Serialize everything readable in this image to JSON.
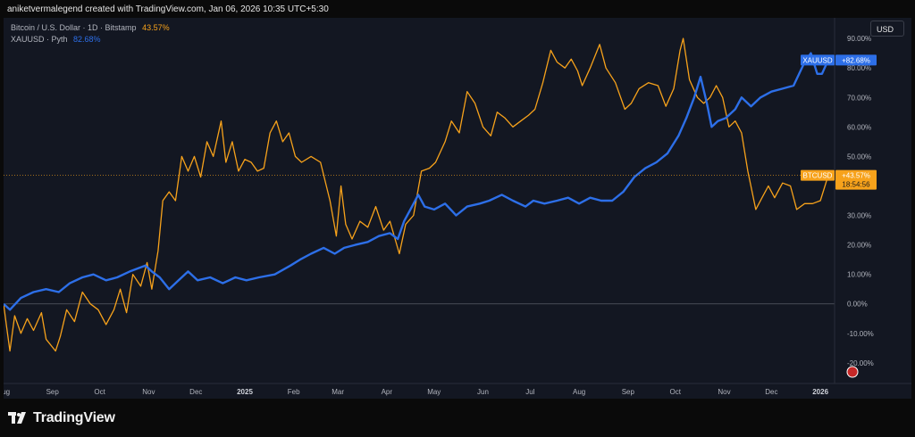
{
  "header": {
    "caption": "aniketvermalegend created with TradingView.com, Jan 06, 2026 10:35 UTC+5:30"
  },
  "legend": {
    "btc_title": "Bitcoin / U.S. Dollar · 1D · Bitstamp",
    "btc_value": "43.57%",
    "xau_title": "XAUUSD · Pyth",
    "xau_value": "82.68%"
  },
  "currency_button": "USD",
  "footer": {
    "logo_text": "TradingView"
  },
  "colors": {
    "background": "#131722",
    "btc": "#f7a21b",
    "xau": "#2d6fe8",
    "grid": "#1f2330",
    "text": "#b2b5be"
  },
  "chart_data": {
    "type": "line",
    "y_unit": "%",
    "ylim": [
      -27,
      97
    ],
    "y_ticks": [
      "90.00%",
      "80.00%",
      "70.00%",
      "60.00%",
      "50.00%",
      "40.00%",
      "30.00%",
      "20.00%",
      "10.00%",
      "0.00%",
      "-10.00%",
      "-20.00%"
    ],
    "y_tick_values": [
      90,
      80,
      70,
      60,
      50,
      40,
      30,
      20,
      10,
      0,
      -10,
      -20
    ],
    "x_range": [
      "2024-08-01",
      "2026-01-10"
    ],
    "x_ticks": [
      {
        "label": "Aug",
        "date": "2024-08-01"
      },
      {
        "label": "Sep",
        "date": "2024-09-01"
      },
      {
        "label": "Oct",
        "date": "2024-10-01"
      },
      {
        "label": "Nov",
        "date": "2024-11-01"
      },
      {
        "label": "Dec",
        "date": "2024-12-01"
      },
      {
        "label": "2025",
        "date": "2025-01-01"
      },
      {
        "label": "Feb",
        "date": "2025-02-01"
      },
      {
        "label": "Mar",
        "date": "2025-03-01"
      },
      {
        "label": "Apr",
        "date": "2025-04-01"
      },
      {
        "label": "May",
        "date": "2025-05-01"
      },
      {
        "label": "Jun",
        "date": "2025-06-01"
      },
      {
        "label": "Jul",
        "date": "2025-07-01"
      },
      {
        "label": "Aug",
        "date": "2025-08-01"
      },
      {
        "label": "Sep",
        "date": "2025-09-01"
      },
      {
        "label": "Oct",
        "date": "2025-10-01"
      },
      {
        "label": "Nov",
        "date": "2025-11-01"
      },
      {
        "label": "Dec",
        "date": "2025-12-01"
      },
      {
        "label": "2026",
        "date": "2026-01-01"
      }
    ],
    "grid": false,
    "zero_line": true,
    "series": [
      {
        "name": "BTCUSD",
        "color": "#f7a21b",
        "last_label": "+43.57%",
        "countdown": "18:54:56",
        "points": [
          [
            "2024-08-01",
            0
          ],
          [
            "2024-08-03",
            -8
          ],
          [
            "2024-08-05",
            -16
          ],
          [
            "2024-08-08",
            -4
          ],
          [
            "2024-08-12",
            -10
          ],
          [
            "2024-08-16",
            -5
          ],
          [
            "2024-08-20",
            -9
          ],
          [
            "2024-08-25",
            -3
          ],
          [
            "2024-08-28",
            -12
          ],
          [
            "2024-09-03",
            -16
          ],
          [
            "2024-09-06",
            -11
          ],
          [
            "2024-09-10",
            -2
          ],
          [
            "2024-09-15",
            -6
          ],
          [
            "2024-09-20",
            4
          ],
          [
            "2024-09-25",
            0
          ],
          [
            "2024-09-30",
            -2
          ],
          [
            "2024-10-05",
            -7
          ],
          [
            "2024-10-10",
            -2
          ],
          [
            "2024-10-14",
            5
          ],
          [
            "2024-10-18",
            -3
          ],
          [
            "2024-10-22",
            10
          ],
          [
            "2024-10-27",
            6
          ],
          [
            "2024-10-31",
            14
          ],
          [
            "2024-11-03",
            5
          ],
          [
            "2024-11-07",
            18
          ],
          [
            "2024-11-10",
            35
          ],
          [
            "2024-11-14",
            38
          ],
          [
            "2024-11-18",
            35
          ],
          [
            "2024-11-22",
            50
          ],
          [
            "2024-11-26",
            45
          ],
          [
            "2024-11-30",
            50
          ],
          [
            "2024-12-04",
            43
          ],
          [
            "2024-12-08",
            55
          ],
          [
            "2024-12-12",
            50
          ],
          [
            "2024-12-17",
            62
          ],
          [
            "2024-12-20",
            48
          ],
          [
            "2024-12-24",
            55
          ],
          [
            "2024-12-28",
            45
          ],
          [
            "2025-01-01",
            49
          ],
          [
            "2025-01-05",
            48
          ],
          [
            "2025-01-09",
            45
          ],
          [
            "2025-01-13",
            46
          ],
          [
            "2025-01-17",
            58
          ],
          [
            "2025-01-21",
            62
          ],
          [
            "2025-01-25",
            55
          ],
          [
            "2025-01-29",
            58
          ],
          [
            "2025-02-02",
            50
          ],
          [
            "2025-02-06",
            48
          ],
          [
            "2025-02-12",
            50
          ],
          [
            "2025-02-18",
            48
          ],
          [
            "2025-02-24",
            35
          ],
          [
            "2025-02-28",
            23
          ],
          [
            "2025-03-03",
            40
          ],
          [
            "2025-03-06",
            27
          ],
          [
            "2025-03-10",
            22
          ],
          [
            "2025-03-15",
            28
          ],
          [
            "2025-03-20",
            26
          ],
          [
            "2025-03-25",
            33
          ],
          [
            "2025-03-30",
            25
          ],
          [
            "2025-04-03",
            28
          ],
          [
            "2025-04-09",
            17
          ],
          [
            "2025-04-13",
            27
          ],
          [
            "2025-04-18",
            30
          ],
          [
            "2025-04-23",
            45
          ],
          [
            "2025-04-28",
            46
          ],
          [
            "2025-05-02",
            48
          ],
          [
            "2025-05-08",
            55
          ],
          [
            "2025-05-12",
            62
          ],
          [
            "2025-05-17",
            58
          ],
          [
            "2025-05-22",
            72
          ],
          [
            "2025-05-27",
            68
          ],
          [
            "2025-06-01",
            60
          ],
          [
            "2025-06-06",
            57
          ],
          [
            "2025-06-10",
            65
          ],
          [
            "2025-06-15",
            63
          ],
          [
            "2025-06-20",
            60
          ],
          [
            "2025-06-25",
            62
          ],
          [
            "2025-06-30",
            64
          ],
          [
            "2025-07-04",
            66
          ],
          [
            "2025-07-09",
            75
          ],
          [
            "2025-07-14",
            86
          ],
          [
            "2025-07-18",
            82
          ],
          [
            "2025-07-23",
            80
          ],
          [
            "2025-07-27",
            83
          ],
          [
            "2025-07-31",
            79
          ],
          [
            "2025-08-03",
            74
          ],
          [
            "2025-08-08",
            80
          ],
          [
            "2025-08-14",
            88
          ],
          [
            "2025-08-18",
            80
          ],
          [
            "2025-08-24",
            75
          ],
          [
            "2025-08-30",
            66
          ],
          [
            "2025-09-03",
            68
          ],
          [
            "2025-09-08",
            73
          ],
          [
            "2025-09-14",
            75
          ],
          [
            "2025-09-20",
            74
          ],
          [
            "2025-09-25",
            67
          ],
          [
            "2025-09-30",
            73
          ],
          [
            "2025-10-04",
            86
          ],
          [
            "2025-10-06",
            90
          ],
          [
            "2025-10-10",
            76
          ],
          [
            "2025-10-15",
            70
          ],
          [
            "2025-10-19",
            68
          ],
          [
            "2025-10-23",
            70
          ],
          [
            "2025-10-27",
            74
          ],
          [
            "2025-10-31",
            70
          ],
          [
            "2025-11-04",
            60
          ],
          [
            "2025-11-08",
            62
          ],
          [
            "2025-11-12",
            58
          ],
          [
            "2025-11-16",
            45
          ],
          [
            "2025-11-21",
            32
          ],
          [
            "2025-11-25",
            36
          ],
          [
            "2025-11-29",
            40
          ],
          [
            "2025-12-03",
            36
          ],
          [
            "2025-12-08",
            41
          ],
          [
            "2025-12-13",
            40
          ],
          [
            "2025-12-17",
            32
          ],
          [
            "2025-12-22",
            34
          ],
          [
            "2025-12-27",
            34
          ],
          [
            "2026-01-01",
            35
          ],
          [
            "2026-01-06",
            43.57
          ]
        ]
      },
      {
        "name": "XAUUSD",
        "color": "#2d6fe8",
        "last_label": "+82.68%",
        "points": [
          [
            "2024-08-01",
            0
          ],
          [
            "2024-08-05",
            -2
          ],
          [
            "2024-08-12",
            2
          ],
          [
            "2024-08-20",
            4
          ],
          [
            "2024-08-28",
            5
          ],
          [
            "2024-09-05",
            4
          ],
          [
            "2024-09-12",
            7
          ],
          [
            "2024-09-20",
            9
          ],
          [
            "2024-09-27",
            10
          ],
          [
            "2024-10-05",
            8
          ],
          [
            "2024-10-12",
            9
          ],
          [
            "2024-10-20",
            11
          ],
          [
            "2024-10-30",
            13
          ],
          [
            "2024-11-03",
            11
          ],
          [
            "2024-11-08",
            9
          ],
          [
            "2024-11-14",
            5
          ],
          [
            "2024-11-20",
            8
          ],
          [
            "2024-11-26",
            11
          ],
          [
            "2024-12-02",
            8
          ],
          [
            "2024-12-10",
            9
          ],
          [
            "2024-12-18",
            7
          ],
          [
            "2024-12-26",
            9
          ],
          [
            "2025-01-02",
            8
          ],
          [
            "2025-01-10",
            9
          ],
          [
            "2025-01-20",
            10
          ],
          [
            "2025-01-30",
            13
          ],
          [
            "2025-02-05",
            15
          ],
          [
            "2025-02-12",
            17
          ],
          [
            "2025-02-20",
            19
          ],
          [
            "2025-02-27",
            17
          ],
          [
            "2025-03-05",
            19
          ],
          [
            "2025-03-12",
            20
          ],
          [
            "2025-03-20",
            21
          ],
          [
            "2025-03-27",
            23
          ],
          [
            "2025-04-03",
            24
          ],
          [
            "2025-04-08",
            22
          ],
          [
            "2025-04-12",
            28
          ],
          [
            "2025-04-16",
            32
          ],
          [
            "2025-04-21",
            37
          ],
          [
            "2025-04-25",
            33
          ],
          [
            "2025-05-01",
            32
          ],
          [
            "2025-05-08",
            34
          ],
          [
            "2025-05-15",
            30
          ],
          [
            "2025-05-22",
            33
          ],
          [
            "2025-05-30",
            34
          ],
          [
            "2025-06-05",
            35
          ],
          [
            "2025-06-13",
            37
          ],
          [
            "2025-06-20",
            35
          ],
          [
            "2025-06-28",
            33
          ],
          [
            "2025-07-03",
            35
          ],
          [
            "2025-07-10",
            34
          ],
          [
            "2025-07-18",
            35
          ],
          [
            "2025-07-25",
            36
          ],
          [
            "2025-08-01",
            34
          ],
          [
            "2025-08-08",
            36
          ],
          [
            "2025-08-15",
            35
          ],
          [
            "2025-08-22",
            35
          ],
          [
            "2025-08-29",
            38
          ],
          [
            "2025-09-05",
            43
          ],
          [
            "2025-09-12",
            46
          ],
          [
            "2025-09-19",
            48
          ],
          [
            "2025-09-26",
            51
          ],
          [
            "2025-10-03",
            57
          ],
          [
            "2025-10-08",
            63
          ],
          [
            "2025-10-13",
            70
          ],
          [
            "2025-10-17",
            77
          ],
          [
            "2025-10-21",
            68
          ],
          [
            "2025-10-24",
            60
          ],
          [
            "2025-10-28",
            62
          ],
          [
            "2025-11-02",
            63
          ],
          [
            "2025-11-08",
            66
          ],
          [
            "2025-11-12",
            70
          ],
          [
            "2025-11-18",
            67
          ],
          [
            "2025-11-24",
            70
          ],
          [
            "2025-12-01",
            72
          ],
          [
            "2025-12-08",
            73
          ],
          [
            "2025-12-15",
            74
          ],
          [
            "2025-12-22",
            82
          ],
          [
            "2025-12-26",
            85
          ],
          [
            "2025-12-30",
            78
          ],
          [
            "2026-01-02",
            78
          ],
          [
            "2026-01-06",
            82.68
          ]
        ]
      }
    ]
  }
}
